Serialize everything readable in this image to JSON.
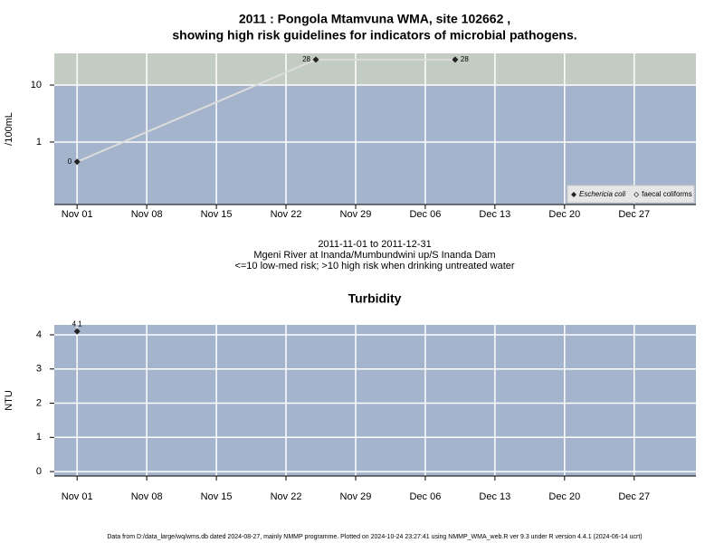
{
  "chart_data": [
    {
      "type": "line",
      "title": [
        "2011 : Pongola Mtamvuna WMA, site 102662 ,",
        "showing high risk guidelines for indicators of microbial pathogens."
      ],
      "notes": [
        "2011-11-01 to 2011-12-31",
        "Mgeni River at Inanda/Mumbundwini up/S Inanda Dam",
        "<=10 low-med risk; >10 high risk when drinking untreated water"
      ],
      "y_label": "/100mL",
      "log_y": true,
      "grid": true,
      "legend": "lower right",
      "x": [
        "2011-11-01",
        "2011-11-25",
        "2011-12-09"
      ],
      "series": [
        {
          "name": "Eschericia coli",
          "color": "#222222",
          "values": [
            0.45,
            28,
            28
          ],
          "value_labels": [
            "0",
            "28",
            "28"
          ]
        },
        {
          "name": "faecal coliforms",
          "color": "#ffffff",
          "values": [
            null,
            null,
            null
          ]
        }
      ],
      "high_risk_threshold": 10,
      "background": "#a4b4cc",
      "high_risk_color": "#c3ccc2",
      "line_color": "#dcdcdc",
      "xlim": [
        "2011-10-29T17:00Z",
        "2012-01-02T05:00Z"
      ],
      "xticks": [
        {
          "value": "2011-11-01",
          "label": "Nov 01"
        },
        {
          "value": "2011-11-08",
          "label": "Nov 08"
        },
        {
          "value": "2011-11-15",
          "label": "Nov 15"
        },
        {
          "value": "2011-11-22",
          "label": "Nov 22"
        },
        {
          "value": "2011-11-29",
          "label": "Nov 29"
        },
        {
          "value": "2011-12-06",
          "label": "Dec 06"
        },
        {
          "value": "2011-12-13",
          "label": "Dec 13"
        },
        {
          "value": "2011-12-20",
          "label": "Dec 20"
        },
        {
          "value": "2011-12-27",
          "label": "Dec 27"
        }
      ],
      "ylim": [
        0.08,
        36
      ],
      "yticks": [
        1,
        10
      ]
    },
    {
      "type": "line",
      "title": "Turbidity",
      "y_label": "NTU",
      "grid": true,
      "x": [
        "2011-11-01"
      ],
      "series": [
        {
          "color": "#222222",
          "values": [
            4.1
          ]
        }
      ],
      "background": "#a4b4cc",
      "xlim": [
        "2011-10-29T17:00Z",
        "2012-01-02T05:00Z"
      ],
      "xticks": [
        {
          "value": "2011-11-01",
          "label": "Nov 01"
        },
        {
          "value": "2011-11-08",
          "label": "Nov 08"
        },
        {
          "value": "2011-11-15",
          "label": "Nov 15"
        },
        {
          "value": "2011-11-22",
          "label": "Nov 22"
        },
        {
          "value": "2011-11-29",
          "label": "Nov 29"
        },
        {
          "value": "2011-12-06",
          "label": "Dec 06"
        },
        {
          "value": "2011-12-13",
          "label": "Dec 13"
        },
        {
          "value": "2011-12-20",
          "label": "Dec 20"
        },
        {
          "value": "2011-12-27",
          "label": "Dec 27"
        }
      ],
      "ylim": [
        -0.13,
        4.29
      ],
      "yticks": [
        0,
        1,
        2,
        3,
        4
      ]
    }
  ],
  "footer": "Data from D:/data_large/wq/wms.db dated 2024-08-27, mainly NMMP programme. Plotted on 2024-10-24 23:27:41 using NMMP_WMA_web.R ver 9.3 under R version 4.4.1 (2024-06-14 ucrt)"
}
